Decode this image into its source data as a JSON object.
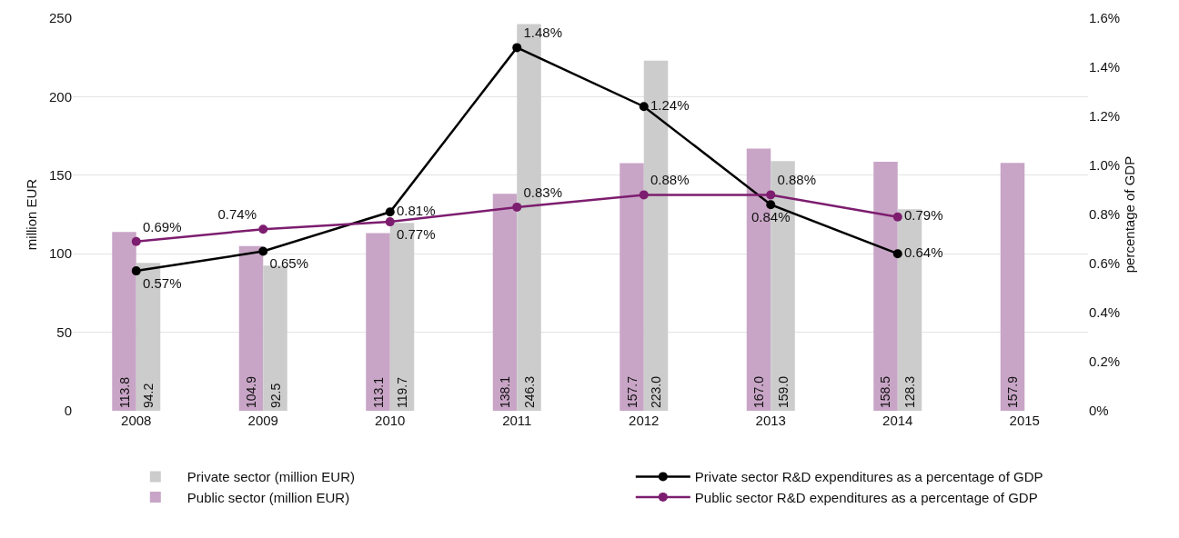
{
  "chart_data": {
    "type": "bar",
    "categories": [
      "2008",
      "2009",
      "2010",
      "2011",
      "2012",
      "2013",
      "2014",
      "2015"
    ],
    "ylabel": "million EUR",
    "y2label": "percentage of GDP",
    "ylim": [
      0,
      250
    ],
    "yticks": [
      0,
      50,
      100,
      150,
      200,
      250
    ],
    "y2lim": [
      0,
      1.6
    ],
    "y2ticks": [
      {
        "value": 0,
        "label": "0%"
      },
      {
        "value": 0.2,
        "label": "0.2%"
      },
      {
        "value": 0.4,
        "label": "0.4%"
      },
      {
        "value": 0.6,
        "label": "0.6%"
      },
      {
        "value": 0.8,
        "label": "0.8%"
      },
      {
        "value": 1.0,
        "label": "1.0%"
      },
      {
        "value": 1.2,
        "label": "1.2%"
      },
      {
        "value": 1.4,
        "label": "1.4%"
      },
      {
        "value": 1.6,
        "label": "1.6%"
      }
    ],
    "grid": "y",
    "legend": "bottom",
    "marker": "circle",
    "line_style": "solid",
    "series": [
      {
        "name": "Public sector (million EUR)",
        "color": "#c8a5c6",
        "values": [
          113.8,
          104.9,
          113.1,
          138.1,
          157.7,
          167.0,
          158.5,
          157.9
        ],
        "value_labels": [
          "113.8",
          "104.9",
          "113.1",
          "138.1",
          "157.7",
          "167.0",
          "158.5",
          "157.9"
        ]
      },
      {
        "name": "Private sector (million EUR)",
        "color": "#cbcccb",
        "values": [
          94.2,
          92.5,
          119.7,
          246.3,
          223.0,
          159.0,
          128.3,
          null
        ],
        "value_labels": [
          "94.2",
          "92.5",
          "119.7",
          "246.3",
          "223.0",
          "159.0",
          "128.3",
          null
        ]
      },
      {
        "name": "Private sector R&D expenditures as a percentage of GDP",
        "type": "line",
        "axis": "y2",
        "color": "#000000",
        "values": [
          0.57,
          0.65,
          0.81,
          1.48,
          1.24,
          0.84,
          0.64,
          null
        ],
        "value_labels": [
          "0.57%",
          "0.65%",
          "0.81%",
          "1.48%",
          "1.24%",
          "0.84%",
          "0.64%",
          null
        ]
      },
      {
        "name": "Public sector R&D expenditures as a percentage of GDP",
        "type": "line",
        "axis": "y2",
        "color": "#7d1d6f",
        "values": [
          0.69,
          0.74,
          0.77,
          0.83,
          0.88,
          0.88,
          0.79,
          null
        ],
        "value_labels": [
          "0.69%",
          "0.74%",
          "0.77%",
          "0.83%",
          "0.88%",
          "0.88%",
          "0.79%",
          null
        ]
      }
    ]
  }
}
